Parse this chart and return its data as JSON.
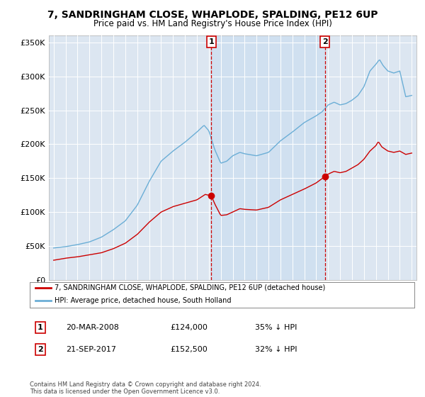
{
  "title_line1": "7, SANDRINGHAM CLOSE, WHAPLODE, SPALDING, PE12 6UP",
  "title_line2": "Price paid vs. HM Land Registry's House Price Index (HPI)",
  "ylim": [
    0,
    360000
  ],
  "yticks": [
    0,
    50000,
    100000,
    150000,
    200000,
    250000,
    300000,
    350000
  ],
  "ytick_labels": [
    "£0",
    "£50K",
    "£100K",
    "£150K",
    "£200K",
    "£250K",
    "£300K",
    "£350K"
  ],
  "sale1_x": 2008.21,
  "sale1_price": 124000,
  "sale1_label": "20-MAR-2008",
  "sale1_pct": "35% ↓ HPI",
  "sale2_x": 2017.72,
  "sale2_price": 152500,
  "sale2_label": "21-SEP-2017",
  "sale2_pct": "32% ↓ HPI",
  "legend_line1": "7, SANDRINGHAM CLOSE, WHAPLODE, SPALDING, PE12 6UP (detached house)",
  "legend_line2": "HPI: Average price, detached house, South Holland",
  "footer": "Contains HM Land Registry data © Crown copyright and database right 2024.\nThis data is licensed under the Open Government Licence v3.0.",
  "price_color": "#cc0000",
  "hpi_color": "#6baed6",
  "hpi_fill_color": "#c6dff0",
  "background_color": "#ffffff",
  "plot_bg_color": "#dce6f1",
  "grid_color": "#ffffff",
  "vline_color": "#cc0000",
  "marker_color": "#cc0000",
  "highlight_color": "#c8ddf0",
  "xlim_left": 1994.6,
  "xlim_right": 2025.4
}
